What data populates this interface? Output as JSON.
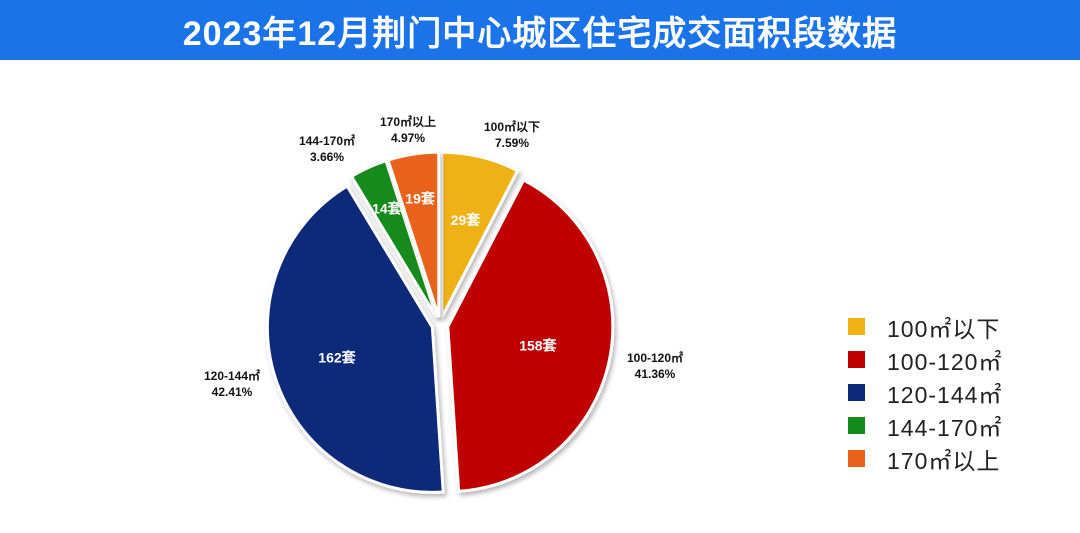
{
  "header": {
    "title": "2023年12月荆门中心城区住宅成交面积段数据",
    "color": "#1a73e8"
  },
  "chart_data": {
    "type": "pie",
    "title": "2023年12月荆门中心城区住宅成交面积段数据",
    "slices": [
      {
        "label": "100㎡以下",
        "outer_label": "100㎡以下",
        "count": 29,
        "count_label": "29套",
        "percent": 7.59,
        "percent_label": "7.59%",
        "color": "#f0b114"
      },
      {
        "label": "100-120㎡",
        "outer_label": "100-120㎡",
        "count": 158,
        "count_label": "158套",
        "percent": 41.36,
        "percent_label": "41.36%",
        "color": "#c00000"
      },
      {
        "label": "120-144㎡",
        "outer_label": "120-144㎡",
        "count": 162,
        "count_label": "162套",
        "percent": 42.41,
        "percent_label": "42.41%",
        "color": "#0e2a7a"
      },
      {
        "label": "144-170㎡",
        "outer_label": "144-170㎡",
        "count": 14,
        "count_label": "14套",
        "percent": 3.66,
        "percent_label": "3.66%",
        "color": "#138a1a"
      },
      {
        "label": "170㎡以上",
        "outer_label": "170㎡以上",
        "count": 19,
        "count_label": "19套",
        "percent": 4.97,
        "percent_label": "4.97%",
        "color": "#e8621a"
      }
    ],
    "legend_position": "right"
  }
}
